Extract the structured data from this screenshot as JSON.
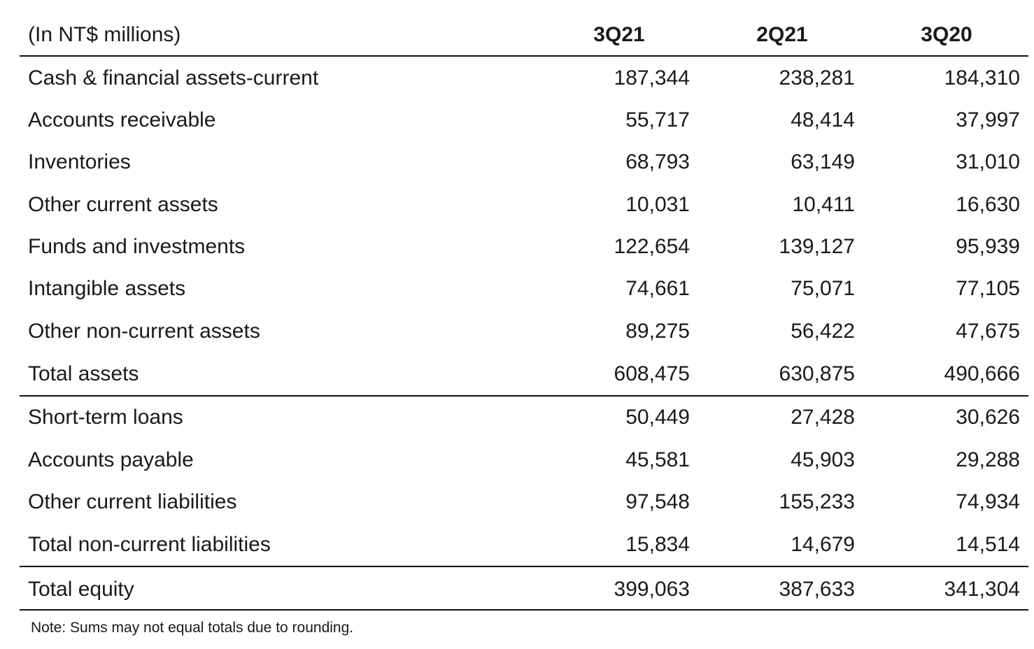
{
  "header": {
    "unit_label": "(In NT$ millions)",
    "columns": [
      "3Q21",
      "2Q21",
      "3Q20"
    ]
  },
  "rows": [
    {
      "label": "Cash & financial assets-current",
      "values": [
        "187,344",
        "238,281",
        "184,310"
      ]
    },
    {
      "label": "Accounts receivable",
      "values": [
        "55,717",
        "48,414",
        "37,997"
      ]
    },
    {
      "label": "Inventories",
      "values": [
        "68,793",
        "63,149",
        "31,010"
      ]
    },
    {
      "label": "Other current assets",
      "values": [
        "10,031",
        "10,411",
        "16,630"
      ]
    },
    {
      "label": "Funds and investments",
      "values": [
        "122,654",
        "139,127",
        "95,939"
      ]
    },
    {
      "label": "Intangible assets",
      "values": [
        "74,661",
        "75,071",
        "77,105"
      ]
    },
    {
      "label": "Other non-current assets",
      "values": [
        "89,275",
        "56,422",
        "47,675"
      ]
    },
    {
      "label": "Total assets",
      "values": [
        "608,475",
        "630,875",
        "490,666"
      ]
    },
    {
      "label": "Short-term loans",
      "values": [
        "50,449",
        "27,428",
        "30,626"
      ]
    },
    {
      "label": "Accounts payable",
      "values": [
        "45,581",
        "45,903",
        "29,288"
      ]
    },
    {
      "label": "Other current liabilities",
      "values": [
        "97,548",
        "155,233",
        "74,934"
      ]
    },
    {
      "label": "Total non-current liabilities",
      "values": [
        "15,834",
        "14,679",
        "14,514"
      ]
    },
    {
      "label": "Total equity",
      "values": [
        "399,063",
        "387,633",
        "341,304"
      ]
    }
  ],
  "note": "Note: Sums may not equal totals due to rounding."
}
